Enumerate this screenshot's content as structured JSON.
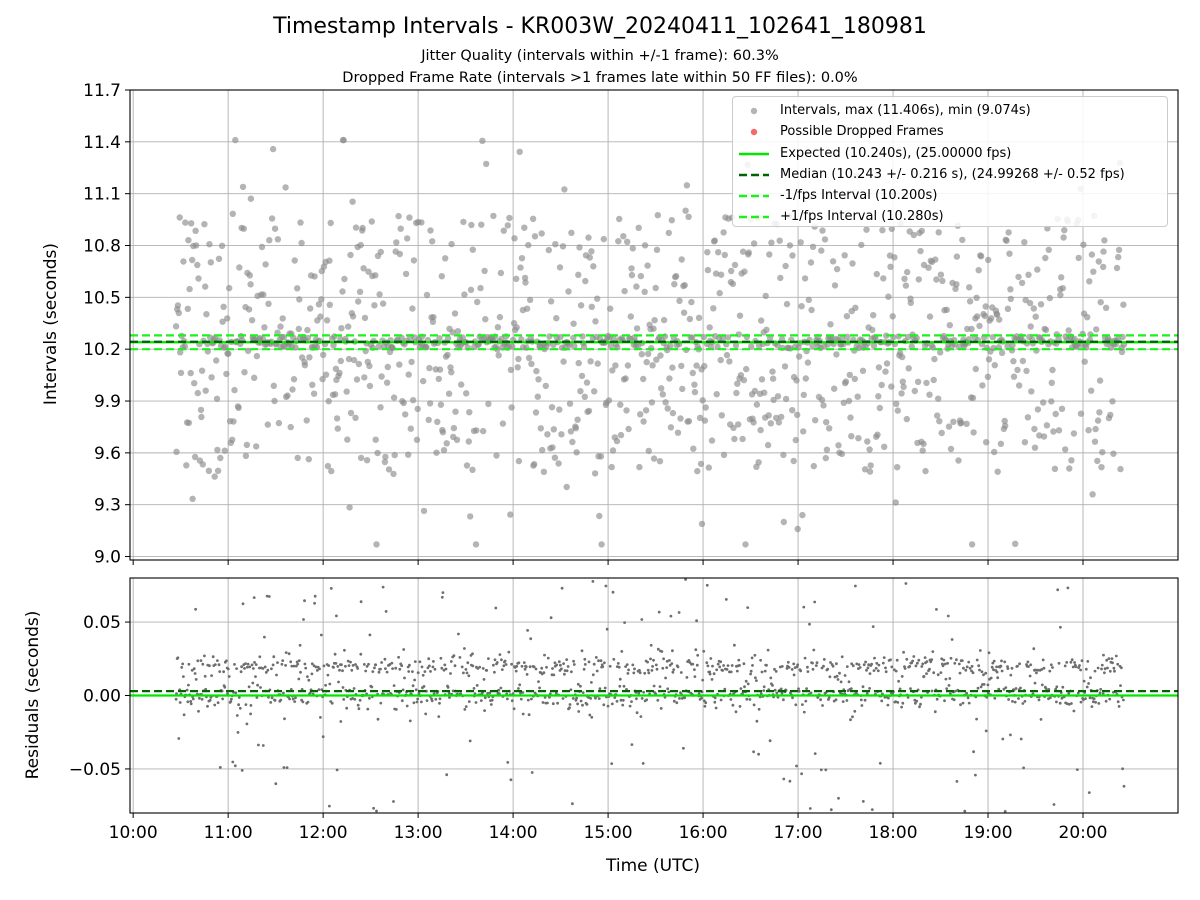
{
  "title": "Timestamp Intervals - KR003W_20240411_102641_180981",
  "subtitle_1": "Jitter Quality (intervals within +/-1 frame): 60.3%",
  "subtitle_2": "Dropped Frame Rate (intervals >1 frames late within 50 FF files): 0.0%",
  "colors": {
    "points": "#8c8c8c",
    "residual_points": "#6e6e6e",
    "dropped": "#f05050",
    "expected": "#00e600",
    "median": "#006400",
    "interval_lines": "#1ef01e",
    "grid": "#b0b0b0"
  },
  "chart_data": [
    {
      "type": "scatter",
      "panel": "top",
      "ylabel": "Intervals (seconds)",
      "xlim": [
        "09:58",
        "21:00"
      ],
      "ylim": [
        8.98,
        11.7
      ],
      "yticks": [
        "9.0",
        "9.3",
        "9.6",
        "9.9",
        "10.2",
        "10.5",
        "10.8",
        "11.1",
        "11.4",
        "11.7"
      ],
      "ytick_values": [
        9.0,
        9.3,
        9.6,
        9.9,
        10.2,
        10.5,
        10.8,
        11.1,
        11.4,
        11.7
      ],
      "grid": true,
      "legend_position": "top-right",
      "data_span": [
        "10:27",
        "20:26"
      ],
      "max_interval": 11.406,
      "min_interval": 9.074,
      "series": [
        {
          "name": "Intervals, max (11.406s), min (9.074s)",
          "marker": "circle",
          "distribution": "uniform-ish between 9.1 and 11.4 with dense band near 10.24"
        },
        {
          "name": "Possible Dropped Frames",
          "marker": "circle",
          "values": []
        }
      ],
      "lines": [
        {
          "name": "Expected (10.240s), (25.00000 fps)",
          "y": 10.24,
          "style": "solid"
        },
        {
          "name": "Median (10.243 +/- 0.216 s), (24.99268 +/- 0.52 fps)",
          "y": 10.243,
          "style": "dashed"
        },
        {
          "name": "-1/fps Interval (10.200s)",
          "y": 10.2,
          "style": "dashed"
        },
        {
          "name": "+1/fps Interval (10.280s)",
          "y": 10.28,
          "style": "dashed"
        }
      ],
      "legend": [
        {
          "label": "Intervals, max (11.406s), min (9.074s)",
          "kind": "dot",
          "color_key": "points"
        },
        {
          "label": "Possible Dropped Frames",
          "kind": "dot",
          "color_key": "dropped"
        },
        {
          "label": "Expected (10.240s), (25.00000 fps)",
          "kind": "solid",
          "color_key": "expected"
        },
        {
          "label": "Median (10.243 +/- 0.216 s), (24.99268 +/- 0.52 fps)",
          "kind": "dashed",
          "color_key": "median"
        },
        {
          "label": "-1/fps Interval (10.200s)",
          "kind": "dashed",
          "color_key": "interval_lines"
        },
        {
          "label": "+1/fps Interval (10.280s)",
          "kind": "dashed",
          "color_key": "interval_lines"
        }
      ]
    },
    {
      "type": "scatter",
      "panel": "bottom",
      "xlabel": "Time (UTC)",
      "ylabel": "Residuals (seconds)",
      "xlim": [
        "09:58",
        "21:00"
      ],
      "ylim": [
        -0.08,
        0.08
      ],
      "yticks": [
        "−0.05",
        "0.00",
        "0.05"
      ],
      "ytick_values": [
        -0.05,
        0.0,
        0.05
      ],
      "xticks": [
        "10:00",
        "11:00",
        "12:00",
        "13:00",
        "14:00",
        "15:00",
        "16:00",
        "17:00",
        "18:00",
        "19:00",
        "20:00"
      ],
      "grid": true,
      "lines": [
        {
          "name": "Expected",
          "y": 0.0,
          "style": "solid"
        },
        {
          "name": "Median",
          "y": 0.003,
          "style": "dashed"
        }
      ],
      "clusters": [
        0.0,
        0.02
      ]
    }
  ]
}
